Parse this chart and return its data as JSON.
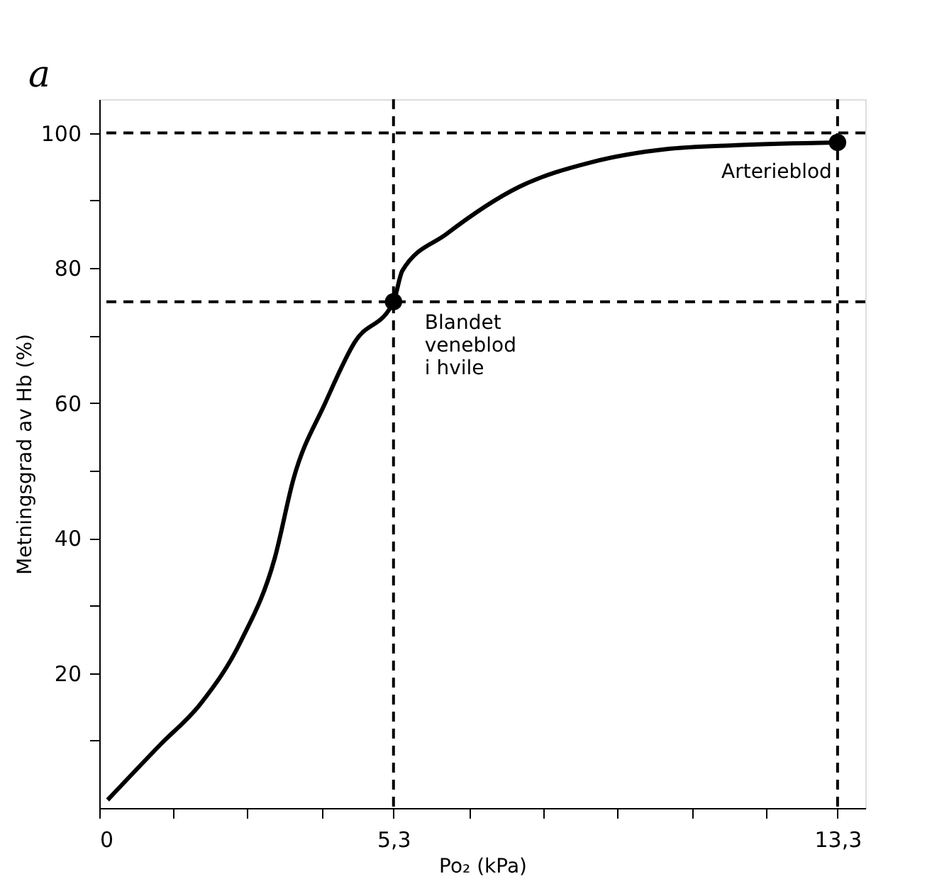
{
  "chart_data": {
    "type": "line",
    "xlabel": "Po₂ (kPa)",
    "ylabel": "Metningsgrad av Hb (%)",
    "series": [
      {
        "color": "#000000",
        "x": [
          0.15,
          1.1,
          1.83,
          2.55,
          3.16,
          3.5,
          4.07,
          4.6,
          5.3,
          5.46,
          6.25,
          7.56,
          8.88,
          10.2,
          11.5,
          13.3
        ],
        "values": [
          1.2,
          9.4,
          15.5,
          24.7,
          37,
          48.8,
          60,
          69,
          75,
          79.6,
          85,
          92,
          95.7,
          97.6,
          98.2,
          98.6
        ]
      },
      {
        "type": "scatter",
        "color": "#000000",
        "x": [
          5.3,
          13.3
        ],
        "values": [
          75,
          98.6
        ]
      }
    ],
    "xlim": [
      0,
      13.8
    ],
    "ylim": [
      0,
      105
    ],
    "xticks": [
      0,
      {
        "value": 1.33,
        "label": null
      },
      {
        "value": 2.67,
        "label": null
      },
      {
        "value": 4.0,
        "label": null
      },
      {
        "value": 5.3,
        "label": "5,3"
      },
      {
        "value": 6.67,
        "label": null
      },
      {
        "value": 8.0,
        "label": null
      },
      {
        "value": 9.33,
        "label": null
      },
      {
        "value": 10.67,
        "label": null
      },
      {
        "value": 12.0,
        "label": null
      },
      {
        "value": 13.3,
        "label": "13,3"
      }
    ],
    "yticks": [
      {
        "value": 10,
        "label": null
      },
      20,
      {
        "value": 30,
        "label": null
      },
      40,
      {
        "value": 50,
        "label": null
      },
      60,
      {
        "value": 70,
        "label": null
      },
      80,
      {
        "value": 90,
        "label": null
      },
      100
    ],
    "ref_lines": [
      {
        "axis": "x",
        "value": 5.3,
        "line_style": "dashed"
      },
      {
        "axis": "x",
        "value": 13.3,
        "line_style": "dashed"
      },
      {
        "axis": "y",
        "value": 75,
        "line_style": "dashed"
      },
      {
        "axis": "y",
        "value": 100,
        "line_style": "dashed"
      }
    ],
    "annotations": [
      "a",
      {
        "text": "Blandet\nveneblod\ni hvile",
        "x": 5.3,
        "y": 75
      },
      {
        "text": "Arterieblod",
        "x": 13.3,
        "y": 98.6
      }
    ],
    "grid": false
  }
}
